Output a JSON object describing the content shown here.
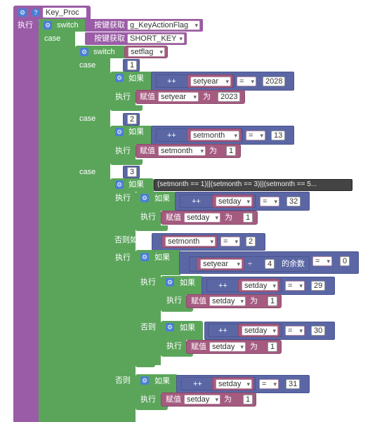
{
  "proc": {
    "name": "Key_Proc",
    "exec": "执行"
  },
  "switch1": {
    "kw": "switch",
    "getter": "按键获取",
    "var": "g_KeyActionFlag",
    "case": "case",
    "case_getter": "按键获取",
    "case_val": "SHORT_KEY"
  },
  "switch2": {
    "kw": "switch",
    "var": "setflag",
    "case": "case"
  },
  "cases": {
    "c1": "1",
    "c2": "2",
    "c3": "3"
  },
  "labels": {
    "if": "如果",
    "exec": "执行",
    "elseif": "否则如果",
    "else": "否则",
    "assign": "赋值",
    "as": "为",
    "inc": "++",
    "eq": "=",
    "div": "÷",
    "mod": "的余数"
  },
  "b1": {
    "var": "setyear",
    "cmp": "2028",
    "assign_var": "setyear",
    "assign_val": "2023"
  },
  "b2": {
    "var": "setmonth",
    "cmp": "13",
    "assign_var": "setmonth",
    "assign_val": "1"
  },
  "b3": {
    "cond": "(setmonth == 1)||(setmonth == 3)||(setmonth == 5...",
    "var": "setday",
    "cmp": "32",
    "assign_var": "setday",
    "assign_val": "1"
  },
  "b4": {
    "var": "setmonth",
    "cmp": "2"
  },
  "b5": {
    "var": "setyear",
    "divisor": "4",
    "cmp": "0"
  },
  "b6": {
    "var": "setday",
    "cmp": "29",
    "assign_var": "setday",
    "assign_val": "1"
  },
  "b7": {
    "var": "setday",
    "cmp": "30",
    "assign_var": "setday",
    "assign_val": "1"
  },
  "b8": {
    "var": "setday",
    "cmp": "31",
    "assign_var": "setday",
    "assign_val": "1"
  }
}
